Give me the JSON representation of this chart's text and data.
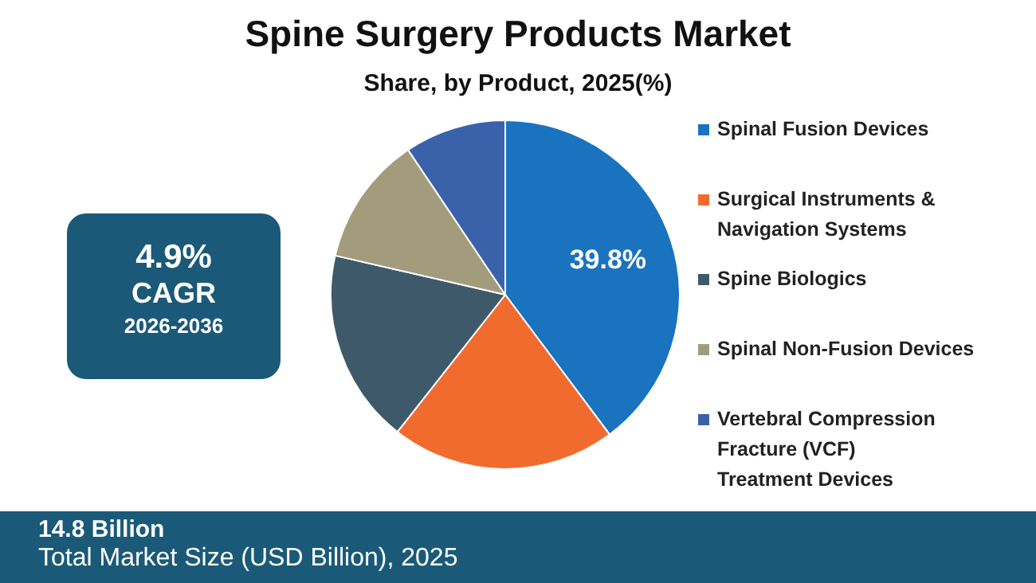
{
  "chart_data": {
    "type": "pie",
    "title": "Spine Surgery Products Market",
    "subtitle": "Share, by Product, 2025(%)",
    "categories": [
      "Spinal Fusion Devices",
      "Surgical Instruments & Navigation Systems",
      "Spine Biologics",
      "Spinal Non-Fusion Devices",
      "Vertebral Compression Fracture (VCF) Treatment Devices"
    ],
    "values": [
      39.8,
      20.8,
      18,
      12,
      9.4
    ],
    "colors": [
      "#1a73bf",
      "#f26b2e",
      "#3e5a6a",
      "#a39c7c",
      "#3a62ab"
    ],
    "value_labels": [
      "39.8%",
      null,
      null,
      null,
      null
    ],
    "legend": "right",
    "annotations": [
      "4.9%",
      "CAGR",
      "2026-2036",
      "14.8 Billion",
      "Total Market Size (USD Billion), 2025"
    ]
  }
}
